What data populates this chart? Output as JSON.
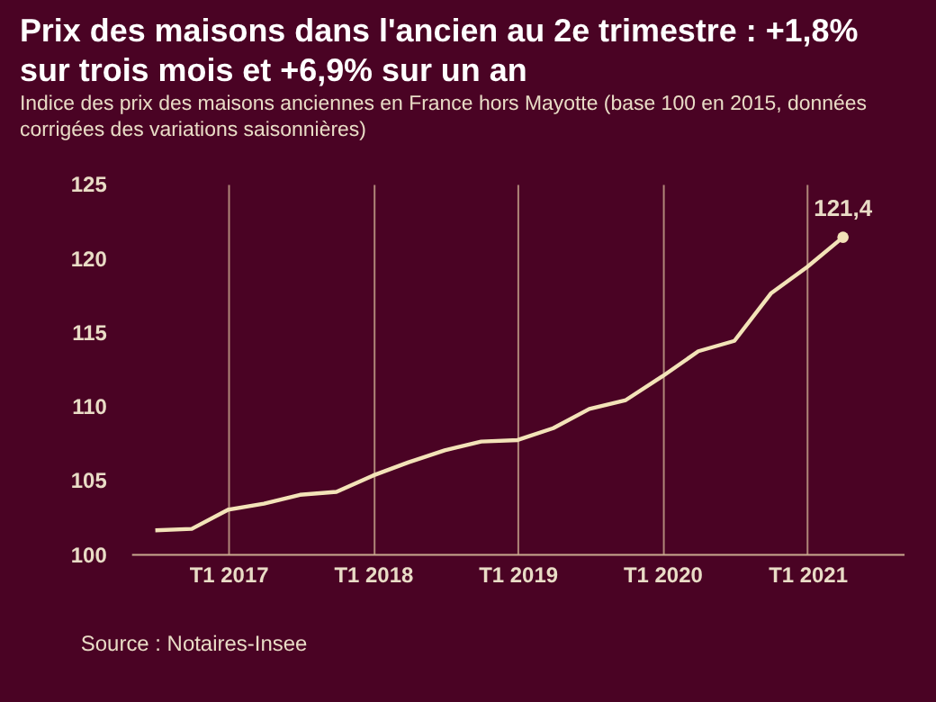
{
  "chart_data": {
    "type": "line",
    "title": "Prix des maisons dans l'ancien au 2e trimestre : +1,8% sur trois mois et +6,9% sur un an",
    "subtitle": "Indice des prix des maisons anciennes en France hors Mayotte (base 100 en 2015, données corrigées des variations saisonnières)",
    "annotations": [
      "Source : Notaires-Insee"
    ],
    "x": [
      "2016-07",
      "2016-10",
      "2017-01",
      "2017-04",
      "2017-07",
      "2017-10",
      "2018-01",
      "2018-04",
      "2018-07",
      "2018-10",
      "2019-01",
      "2019-04",
      "2019-07",
      "2019-10",
      "2020-01",
      "2020-04",
      "2020-07",
      "2020-10",
      "2021-01",
      "2021-04"
    ],
    "series": [
      {
        "color": "#f3e3b8",
        "values": [
          101.6,
          101.7,
          103.0,
          103.4,
          104.0,
          104.2,
          105.3,
          106.2,
          107.0,
          107.6,
          107.7,
          108.5,
          109.8,
          110.4,
          112.0,
          113.7,
          114.4,
          117.6,
          119.4,
          121.4
        ],
        "value_labels": [
          null,
          null,
          null,
          null,
          null,
          null,
          null,
          null,
          null,
          null,
          null,
          null,
          null,
          null,
          null,
          null,
          null,
          null,
          null,
          "121,4"
        ]
      }
    ],
    "xticks": [
      {
        "value": "2017-01",
        "label": "T1 2017"
      },
      {
        "value": "2018-01",
        "label": "T1 2018"
      },
      {
        "value": "2019-01",
        "label": "T1 2019"
      },
      {
        "value": "2020-01",
        "label": "T1 2020"
      },
      {
        "value": "2021-01",
        "label": "T1 2021"
      }
    ],
    "xlim": [
      "2016-05",
      "2021-09"
    ],
    "ylim": [
      100,
      125
    ],
    "yticks": [
      100,
      105,
      110,
      115,
      120,
      125
    ],
    "grid": "x",
    "legend": false,
    "marker": "none",
    "line_style": "solid"
  }
}
